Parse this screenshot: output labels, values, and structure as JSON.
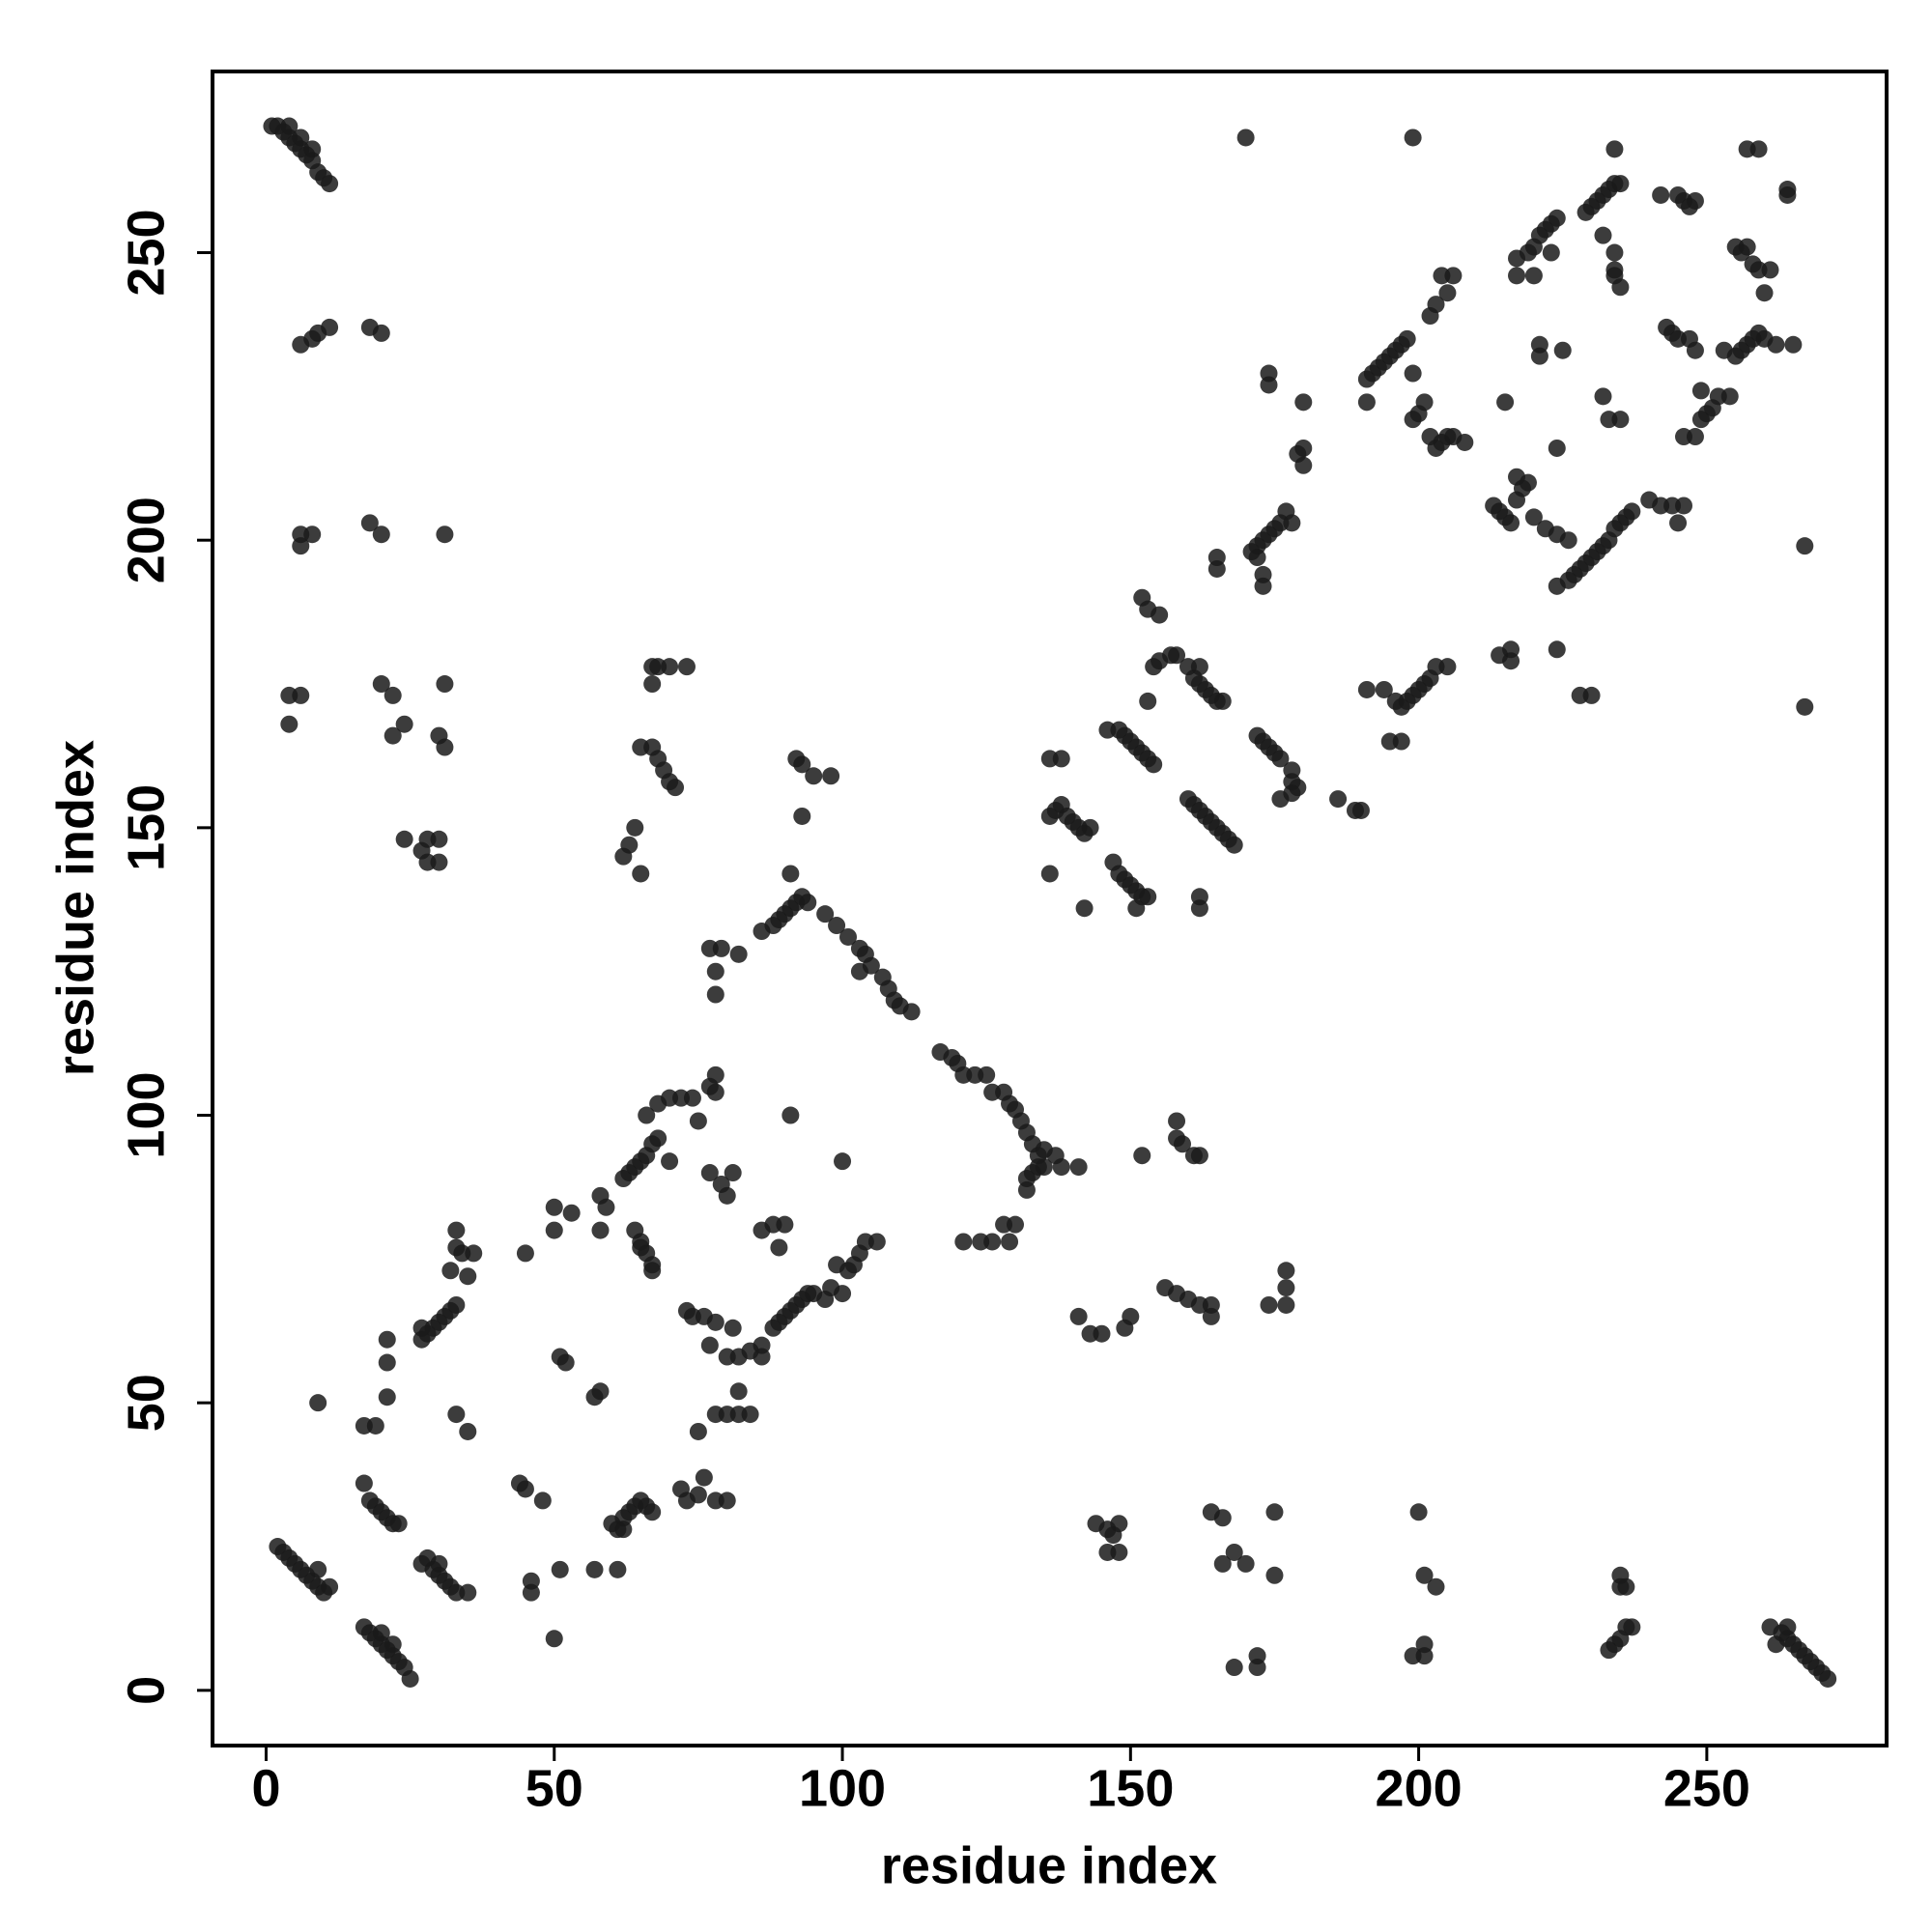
{
  "chart_data": {
    "type": "scatter",
    "x_label": "residue index",
    "y_label": "residue index",
    "xlim": [
      -9.3,
      281.2
    ],
    "ylim": [
      -9.6,
      281.5
    ],
    "xticks": [
      0,
      50,
      100,
      150,
      200,
      250
    ],
    "yticks": [
      0,
      50,
      100,
      150,
      200,
      250
    ],
    "color": "#1a1a1a",
    "x": [
      1,
      2,
      3,
      4,
      5,
      6,
      7,
      8,
      9,
      10,
      11,
      4,
      6,
      8,
      6,
      8,
      9,
      11,
      18,
      20,
      6,
      8,
      6,
      18,
      20,
      31,
      4,
      6,
      4,
      20,
      22,
      24,
      22,
      30,
      31,
      31,
      24,
      27,
      28,
      30,
      28,
      30,
      2,
      3,
      4,
      5,
      6,
      7,
      8,
      9,
      10,
      11,
      9,
      17,
      18,
      19,
      20,
      21,
      22,
      23,
      24,
      25,
      20,
      22,
      17,
      18,
      19,
      20,
      21,
      22,
      23,
      17,
      19,
      21,
      21,
      21,
      9,
      27,
      28,
      29,
      30,
      31,
      32,
      33,
      35,
      30,
      27,
      28,
      29,
      30,
      31,
      32,
      33,
      27,
      32,
      33,
      34,
      36,
      33,
      35,
      33,
      35,
      44,
      45,
      46,
      46,
      48,
      50,
      50,
      51,
      52,
      53,
      51,
      50,
      45,
      57,
      58,
      57,
      61,
      58,
      58,
      59,
      60,
      61,
      62,
      63,
      64,
      65,
      66,
      67,
      62,
      62,
      63,
      64,
      65,
      66,
      67,
      68,
      66,
      68,
      70,
      72,
      74,
      75,
      70,
      64,
      65,
      66,
      67,
      67,
      65,
      62,
      63,
      64,
      65,
      65,
      67,
      68,
      69,
      70,
      71,
      67,
      68,
      70,
      73,
      67,
      73,
      74,
      76,
      78,
      81,
      77,
      72,
      73,
      75,
      76,
      78,
      80,
      75,
      80,
      78,
      82,
      82,
      84,
      80,
      82,
      84,
      86,
      86,
      77,
      79,
      81,
      80,
      78,
      78,
      77,
      78,
      78,
      77,
      79,
      82,
      86,
      88,
      89,
      90,
      88,
      89,
      90,
      91,
      92,
      93,
      94,
      95,
      97,
      98,
      100,
      101,
      102,
      103,
      104,
      106,
      99,
      91,
      100,
      86,
      88,
      89,
      90,
      91,
      92,
      93,
      94,
      91,
      92,
      93,
      95,
      98,
      93,
      97,
      99,
      101,
      103,
      104,
      105,
      107,
      108,
      109,
      110,
      112,
      103,
      117,
      119,
      120,
      121,
      123,
      125,
      126,
      128,
      129,
      130,
      131,
      132,
      133,
      134,
      135,
      137,
      132,
      133,
      134,
      135,
      138,
      132,
      121,
      124,
      126,
      128,
      129,
      130,
      141,
      143,
      145,
      149,
      150,
      141,
      152,
      158,
      158,
      159,
      161,
      162,
      156,
      158,
      160,
      162,
      164,
      164,
      174,
      177,
      177,
      177,
      144,
      146,
      147,
      148,
      146,
      148,
      164,
      166,
      166,
      168,
      170,
      168,
      172,
      172,
      175,
      175,
      200,
      201,
      203,
      199,
      201,
      201,
      233,
      234,
      235,
      236,
      237,
      235,
      235,
      236,
      261,
      262,
      263,
      264,
      265,
      266,
      267,
      268,
      269,
      270,
      271,
      264,
      136,
      136,
      137,
      138,
      139,
      140,
      141,
      142,
      143,
      136,
      138,
      142,
      147,
      148,
      149,
      150,
      151,
      152,
      153,
      151,
      146,
      148,
      149,
      150,
      151,
      152,
      153,
      154,
      153,
      152,
      153,
      155,
      154,
      155,
      157,
      158,
      160,
      161,
      162,
      163,
      164,
      165,
      166,
      162,
      160,
      161,
      162,
      163,
      164,
      165,
      166,
      167,
      168,
      162,
      162,
      165,
      165,
      171,
      172,
      173,
      174,
      175,
      176,
      177,
      178,
      173,
      173,
      172,
      172,
      173,
      174,
      175,
      176,
      178,
      178,
      176,
      178,
      179,
      174,
      174,
      179,
      180,
      180,
      180,
      186,
      189,
      190,
      191,
      194,
      195,
      197,
      196,
      197,
      198,
      199,
      200,
      201,
      202,
      203,
      205,
      199,
      191,
      192,
      193,
      194,
      195,
      196,
      197,
      198,
      191,
      170,
      199,
      200,
      201,
      202,
      203,
      204,
      205,
      206,
      208,
      199,
      202,
      203,
      205,
      204,
      206,
      215,
      214,
      216,
      216,
      213,
      214,
      215,
      216,
      217,
      218,
      219,
      217,
      220,
      222,
      224,
      226,
      224,
      224,
      224,
      228,
      230,
      226,
      227,
      228,
      229,
      230,
      231,
      232,
      233,
      234,
      235,
      236,
      237,
      240,
      242,
      244,
      246,
      245,
      217,
      217,
      219,
      220,
      221,
      222,
      223,
      224,
      220,
      221,
      221,
      223,
      225,
      229,
      230,
      231,
      232,
      233,
      234,
      235,
      232,
      234,
      234,
      234,
      235,
      234,
      232,
      233,
      235,
      242,
      245,
      246,
      247,
      248,
      243,
      244,
      245,
      247,
      248,
      246,
      248,
      249,
      250,
      251,
      252,
      254,
      249,
      253,
      255,
      256,
      257,
      258,
      259,
      260,
      262,
      256,
      257,
      258,
      259,
      260,
      261,
      257,
      259,
      264,
      264,
      265,
      267,
      267,
      255
    ],
    "values": [
      272,
      272,
      271,
      270,
      269,
      268,
      267,
      266,
      264,
      263,
      262,
      272,
      270,
      268,
      234,
      235,
      236,
      237,
      237,
      236,
      201,
      201,
      199,
      203,
      201,
      201,
      173,
      173,
      168,
      175,
      173,
      168,
      166,
      166,
      175,
      164,
      148,
      146,
      148,
      148,
      144,
      144,
      25,
      24,
      23,
      22,
      21,
      20,
      19,
      18,
      17,
      18,
      21,
      11,
      10,
      9,
      8,
      7,
      6,
      5,
      4,
      2,
      10,
      8,
      36,
      33,
      32,
      31,
      30,
      29,
      29,
      46,
      46,
      51,
      57,
      61,
      50,
      22,
      23,
      21,
      20,
      19,
      18,
      17,
      17,
      22,
      61,
      62,
      63,
      64,
      65,
      66,
      67,
      63,
      73,
      77,
      76,
      76,
      80,
      72,
      48,
      45,
      36,
      35,
      19,
      17,
      33,
      84,
      80,
      58,
      57,
      83,
      21,
      9,
      76,
      51,
      52,
      21,
      21,
      80,
      86,
      84,
      29,
      28,
      30,
      31,
      32,
      33,
      32,
      31,
      28,
      89,
      90,
      91,
      92,
      93,
      95,
      96,
      100,
      102,
      103,
      103,
      103,
      99,
      92,
      80,
      77,
      76,
      74,
      73,
      78,
      145,
      147,
      150,
      142,
      164,
      164,
      162,
      160,
      158,
      157,
      178,
      178,
      178,
      178,
      175,
      66,
      65,
      65,
      64,
      63,
      60,
      35,
      33,
      34,
      37,
      33,
      33,
      45,
      48,
      48,
      52,
      48,
      48,
      58,
      58,
      59,
      60,
      58,
      90,
      88,
      90,
      86,
      104,
      107,
      105,
      125,
      121,
      129,
      129,
      128,
      80,
      81,
      77,
      81,
      63,
      64,
      65,
      66,
      67,
      68,
      69,
      69,
      68,
      70,
      69,
      73,
      74,
      76,
      78,
      78,
      74,
      100,
      92,
      132,
      133,
      134,
      135,
      136,
      137,
      138,
      137,
      142,
      162,
      161,
      159,
      159,
      152,
      135,
      133,
      131,
      129,
      128,
      126,
      124,
      122,
      120,
      119,
      118,
      125,
      111,
      110,
      109,
      107,
      107,
      107,
      104,
      104,
      102,
      101,
      99,
      97,
      95,
      93,
      94,
      93,
      89,
      90,
      91,
      91,
      91,
      87,
      78,
      78,
      78,
      81,
      78,
      81,
      65,
      62,
      62,
      63,
      65,
      91,
      93,
      99,
      96,
      95,
      93,
      93,
      70,
      69,
      68,
      67,
      67,
      65,
      67,
      73,
      70,
      67,
      29,
      28,
      27,
      29,
      24,
      24,
      31,
      30,
      22,
      24,
      22,
      4,
      6,
      4,
      31,
      20,
      31,
      20,
      18,
      6,
      8,
      6,
      7,
      8,
      9,
      11,
      11,
      20,
      18,
      18,
      11,
      8,
      10,
      9,
      8,
      7,
      6,
      5,
      4,
      3,
      2,
      11,
      142,
      152,
      153,
      154,
      152,
      151,
      150,
      149,
      150,
      162,
      162,
      136,
      144,
      142,
      141,
      140,
      139,
      138,
      138,
      136,
      167,
      167,
      166,
      165,
      164,
      163,
      162,
      161,
      172,
      190,
      188,
      187,
      178,
      179,
      180,
      180,
      178,
      176,
      175,
      174,
      173,
      172,
      172,
      178,
      155,
      154,
      153,
      152,
      151,
      150,
      149,
      148,
      147,
      138,
      136,
      195,
      197,
      198,
      199,
      200,
      201,
      202,
      203,
      205,
      203,
      194,
      192,
      197,
      166,
      165,
      164,
      163,
      162,
      160,
      158,
      155,
      156,
      157,
      229,
      227,
      215,
      216,
      213,
      224,
      155,
      153,
      153,
      174,
      174,
      165,
      165,
      172,
      171,
      172,
      173,
      174,
      175,
      176,
      178,
      178,
      270,
      228,
      229,
      230,
      231,
      232,
      233,
      234,
      235,
      224,
      270,
      221,
      222,
      224,
      218,
      216,
      217,
      218,
      218,
      217,
      229,
      239,
      241,
      243,
      246,
      246,
      224,
      180,
      179,
      181,
      206,
      205,
      204,
      203,
      207,
      209,
      210,
      211,
      204,
      202,
      201,
      200,
      192,
      181,
      216,
      173,
      173,
      193,
      194,
      195,
      196,
      197,
      198,
      199,
      200,
      202,
      203,
      204,
      205,
      207,
      206,
      206,
      206,
      203,
      249,
      246,
      250,
      251,
      253,
      254,
      255,
      256,
      246,
      234,
      232,
      250,
      233,
      257,
      258,
      259,
      260,
      261,
      262,
      262,
      253,
      250,
      247,
      246,
      244,
      268,
      225,
      221,
      221,
      260,
      260,
      259,
      258,
      259,
      237,
      236,
      235,
      235,
      233,
      218,
      218,
      221,
      222,
      223,
      225,
      225,
      226,
      233,
      232,
      233,
      234,
      235,
      236,
      235,
      234,
      250,
      251,
      248,
      247,
      243,
      247,
      268,
      268,
      261,
      260,
      234,
      199,
      171,
      251
    ]
  }
}
